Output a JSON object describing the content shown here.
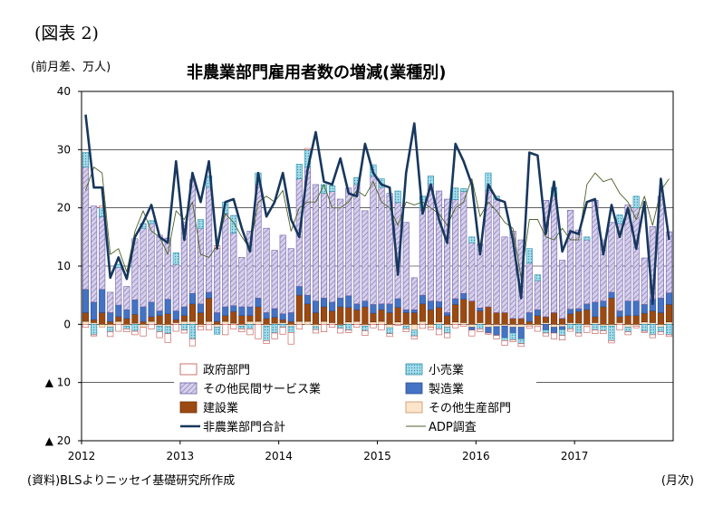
{
  "figure_label": "(図表 2)",
  "unit_label": "(前月差、万人)",
  "source_note": "(資料)BLSよりニッセイ基礎研究所作成",
  "x_unit": "(月次)",
  "colors": {
    "government": "#c0504d",
    "retail": "#4bacc6",
    "other_services": "#9b8fc8",
    "manufacturing": "#4472c4",
    "construction": "#9c4a12",
    "other_goods": "#f2bf94",
    "total_line": "#17375e",
    "adp_line": "#4f6228"
  },
  "chart_data": {
    "type": "bar",
    "title": "非農業部門雇用者数の増減(業種別)",
    "ylim": [
      -20,
      40
    ],
    "y_ticks": [
      {
        "value": 40,
        "label": "40"
      },
      {
        "value": 30,
        "label": "30"
      },
      {
        "value": 20,
        "label": "20"
      },
      {
        "value": 10,
        "label": "10"
      },
      {
        "value": 0,
        "label": "0"
      },
      {
        "value": -10,
        "label": "▲ 10"
      },
      {
        "value": -20,
        "label": "▲ 20"
      }
    ],
    "x_ticks": [
      {
        "index": 0,
        "label": "2012"
      },
      {
        "index": 12,
        "label": "2013"
      },
      {
        "index": 24,
        "label": "2014"
      },
      {
        "index": 36,
        "label": "2015"
      },
      {
        "index": 48,
        "label": "2016"
      },
      {
        "index": 60,
        "label": "2017"
      }
    ],
    "grid": "horizontal-major",
    "legend_position": "bottom-inside",
    "series": [
      {
        "key": "government",
        "name": "政府部門",
        "type": "bar",
        "values": [
          -0.5,
          -0.2,
          0.3,
          -0.8,
          -1.2,
          -0.5,
          -0.6,
          -1.5,
          -0.8,
          -1.0,
          -1.5,
          -1.2,
          -0.5,
          -1.2,
          -0.6,
          -1.0,
          0.5,
          -1.8,
          -0.8,
          -0.5,
          -1.0,
          -2.5,
          -0.5,
          -1.0,
          -1.2,
          -2.0,
          -0.8,
          0.2,
          -0.6,
          -1.3,
          -0.5,
          -0.8,
          -0.4,
          -0.5,
          -0.8,
          -0.6,
          -1.0,
          -0.5,
          -0.2,
          -0.5,
          -0.5,
          -0.7,
          -0.4,
          -1.0,
          -0.8,
          -0.6,
          -0.3,
          -1.0,
          -0.5,
          -0.2,
          -0.6,
          -0.8,
          -0.3,
          -0.5,
          -0.4,
          -0.8,
          -0.5,
          -1.0,
          -0.8,
          -0.4,
          -0.5,
          -1.0,
          -0.6,
          -0.5,
          -0.4,
          -1.0,
          -0.5,
          -0.3,
          -0.2,
          -0.5,
          -0.4,
          -0.3
        ]
      },
      {
        "key": "retail",
        "name": "小売業",
        "type": "bar",
        "values": [
          2.5,
          -1.8,
          1.5,
          -0.8,
          0.5,
          -0.5,
          -1.2,
          0.8,
          0.5,
          -1.0,
          -1.2,
          2.0,
          -1.0,
          -2.5,
          1.5,
          2.0,
          -1.2,
          2.0,
          3.0,
          -0.5,
          -0.8,
          2.0,
          -2.5,
          -1.5,
          -0.5,
          -1.0,
          2.5,
          3.0,
          -0.5,
          1.5,
          1.0,
          -0.5,
          -1.0,
          1.2,
          -0.8,
          2.0,
          1.5,
          -1.0,
          2.0,
          -0.5,
          -1.0,
          2.0,
          1.5,
          -0.8,
          -1.0,
          2.0,
          0.5,
          1.0,
          -0.8,
          3.0,
          0.5,
          -0.5,
          -1.2,
          -0.8,
          2.5,
          1.0,
          -0.5,
          1.5,
          -1.0,
          -0.8,
          -1.5,
          0.5,
          -1.0,
          -0.8,
          -2.5,
          1.5,
          -0.8,
          2.0,
          -1.2,
          -1.8,
          -0.8,
          -1.8
        ]
      },
      {
        "key": "other_services",
        "name": "その他民間サービス業",
        "type": "bar",
        "values": [
          21.0,
          16.5,
          12.5,
          3.5,
          6.5,
          4.0,
          10.5,
          13.5,
          13.5,
          13.0,
          10.5,
          8.0,
          14.5,
          19.5,
          13.0,
          18.0,
          11.0,
          16.0,
          12.5,
          8.5,
          13.0,
          19.5,
          14.5,
          10.0,
          13.5,
          11.0,
          18.5,
          22.0,
          20.0,
          18.0,
          19.0,
          17.0,
          18.5,
          20.5,
          15.5,
          22.0,
          20.0,
          19.0,
          16.5,
          15.0,
          5.5,
          15.0,
          20.0,
          19.0,
          19.5,
          17.0,
          17.5,
          10.0,
          11.0,
          20.0,
          19.5,
          13.0,
          15.0,
          13.5,
          8.5,
          5.0,
          20.0,
          20.0,
          10.0,
          17.0,
          13.5,
          11.0,
          17.5,
          10.5,
          12.0,
          15.0,
          16.5,
          16.0,
          8.0,
          12.5,
          17.5,
          10.5
        ]
      },
      {
        "key": "manufacturing",
        "name": "製造業",
        "type": "bar",
        "values": [
          4.0,
          3.0,
          4.0,
          1.5,
          2.0,
          1.5,
          2.5,
          2.5,
          2.5,
          0.8,
          2.5,
          1.5,
          1.5,
          1.8,
          1.5,
          1.0,
          1.5,
          1.5,
          1.0,
          1.5,
          1.5,
          1.5,
          1.0,
          1.5,
          1.0,
          1.5,
          1.5,
          1.5,
          2.0,
          1.5,
          1.5,
          1.5,
          2.0,
          1.0,
          1.0,
          1.5,
          1.0,
          1.5,
          1.5,
          0.5,
          0.5,
          1.5,
          1.5,
          1.0,
          0.5,
          1.0,
          1.0,
          -0.5,
          0.5,
          -1.0,
          -1.5,
          -2.0,
          -1.0,
          -2.0,
          1.5,
          1.0,
          -1.0,
          -1.0,
          -0.5,
          0.8,
          0.5,
          1.0,
          2.5,
          1.0,
          1.0,
          1.0,
          2.5,
          2.5,
          1.5,
          2.0,
          2.5,
          2.0
        ]
      },
      {
        "key": "construction",
        "name": "建設業",
        "type": "bar",
        "values": [
          1.5,
          0.5,
          2.0,
          0.5,
          0.8,
          1.0,
          1.5,
          0.5,
          0.8,
          1.5,
          1.8,
          0.5,
          1.0,
          3.0,
          2.0,
          4.0,
          0.5,
          1.0,
          2.0,
          1.5,
          1.0,
          2.5,
          1.0,
          1.0,
          0.5,
          0.5,
          4.5,
          3.0,
          2.0,
          2.5,
          2.0,
          3.0,
          2.5,
          2.0,
          3.0,
          1.5,
          2.0,
          2.0,
          2.5,
          2.0,
          2.0,
          3.0,
          2.5,
          2.5,
          1.5,
          3.0,
          4.0,
          4.0,
          2.0,
          3.0,
          2.0,
          2.0,
          1.0,
          1.0,
          0.5,
          1.5,
          1.0,
          2.0,
          1.0,
          1.5,
          2.0,
          2.5,
          1.0,
          3.0,
          4.5,
          1.0,
          1.5,
          1.5,
          1.5,
          2.0,
          2.0,
          3.0
        ]
      },
      {
        "key": "other_goods",
        "name": "その他生産部門",
        "type": "bar",
        "values": [
          0.5,
          0.3,
          -0.5,
          -0.5,
          0.5,
          -0.3,
          0.2,
          -0.5,
          0.5,
          -0.3,
          -0.4,
          0.3,
          0.5,
          0.5,
          -0.4,
          0.5,
          -0.5,
          0.5,
          0.2,
          -0.3,
          0.5,
          0.5,
          -0.3,
          0.2,
          0.3,
          -0.4,
          0.5,
          0.5,
          -0.4,
          0.5,
          0.3,
          -0.2,
          0.4,
          0.5,
          -0.3,
          0.4,
          0.5,
          -0.6,
          0.4,
          -0.3,
          -1.0,
          0.5,
          -0.5,
          0.4,
          -0.5,
          0.4,
          0.3,
          -0.5,
          0.3,
          -0.5,
          -0.4,
          -0.3,
          -0.5,
          -0.5,
          -0.3,
          -0.4,
          0.3,
          -0.5,
          -0.4,
          0.3,
          0.2,
          -0.4,
          0.3,
          -0.3,
          -0.3,
          0.3,
          -0.5,
          -0.3,
          0.4,
          0.3,
          -0.5,
          0.4
        ]
      },
      {
        "key": "total_line",
        "name": "非農業部門合計",
        "type": "line",
        "values": [
          36.0,
          23.5,
          23.5,
          8.0,
          11.5,
          7.8,
          15.0,
          17.5,
          20.5,
          15.0,
          14.0,
          28.0,
          14.5,
          26.0,
          21.0,
          28.0,
          13.0,
          21.0,
          21.5,
          16.5,
          12.5,
          26.0,
          18.5,
          21.0,
          26.0,
          18.0,
          15.0,
          26.5,
          33.0,
          24.5,
          24.0,
          28.5,
          22.5,
          22.0,
          31.0,
          26.0,
          24.0,
          23.5,
          8.5,
          26.0,
          34.5,
          19.0,
          24.0,
          18.0,
          14.0,
          31.0,
          28.0,
          24.0,
          12.0,
          24.0,
          21.5,
          21.0,
          14.5,
          4.5,
          29.5,
          29.0,
          15.5,
          24.5,
          12.5,
          16.0,
          15.5,
          21.0,
          21.5,
          12.0,
          20.5,
          15.0,
          20.0,
          13.0,
          21.0,
          3.5,
          25.0,
          14.5
        ]
      },
      {
        "key": "adp_line",
        "name": "ADP調査",
        "type": "line",
        "values": [
          23.0,
          27.0,
          26.0,
          12.0,
          13.0,
          9.0,
          16.0,
          19.5,
          16.0,
          15.0,
          12.0,
          19.5,
          18.0,
          21.0,
          12.0,
          11.5,
          13.5,
          19.0,
          17.5,
          15.0,
          13.0,
          21.0,
          22.0,
          21.0,
          23.0,
          16.0,
          20.0,
          21.0,
          21.0,
          24.0,
          20.0,
          20.0,
          21.0,
          23.0,
          22.0,
          24.5,
          21.0,
          20.0,
          17.0,
          21.0,
          20.5,
          21.0,
          20.0,
          19.0,
          17.0,
          20.0,
          21.0,
          25.0,
          18.5,
          21.0,
          19.5,
          17.5,
          16.5,
          8.0,
          18.0,
          18.0,
          15.0,
          14.5,
          16.5,
          14.5,
          14.5,
          24.0,
          26.0,
          24.5,
          25.0,
          22.5,
          21.0,
          18.0,
          22.0,
          17.0,
          23.0,
          25.0
        ]
      }
    ]
  }
}
